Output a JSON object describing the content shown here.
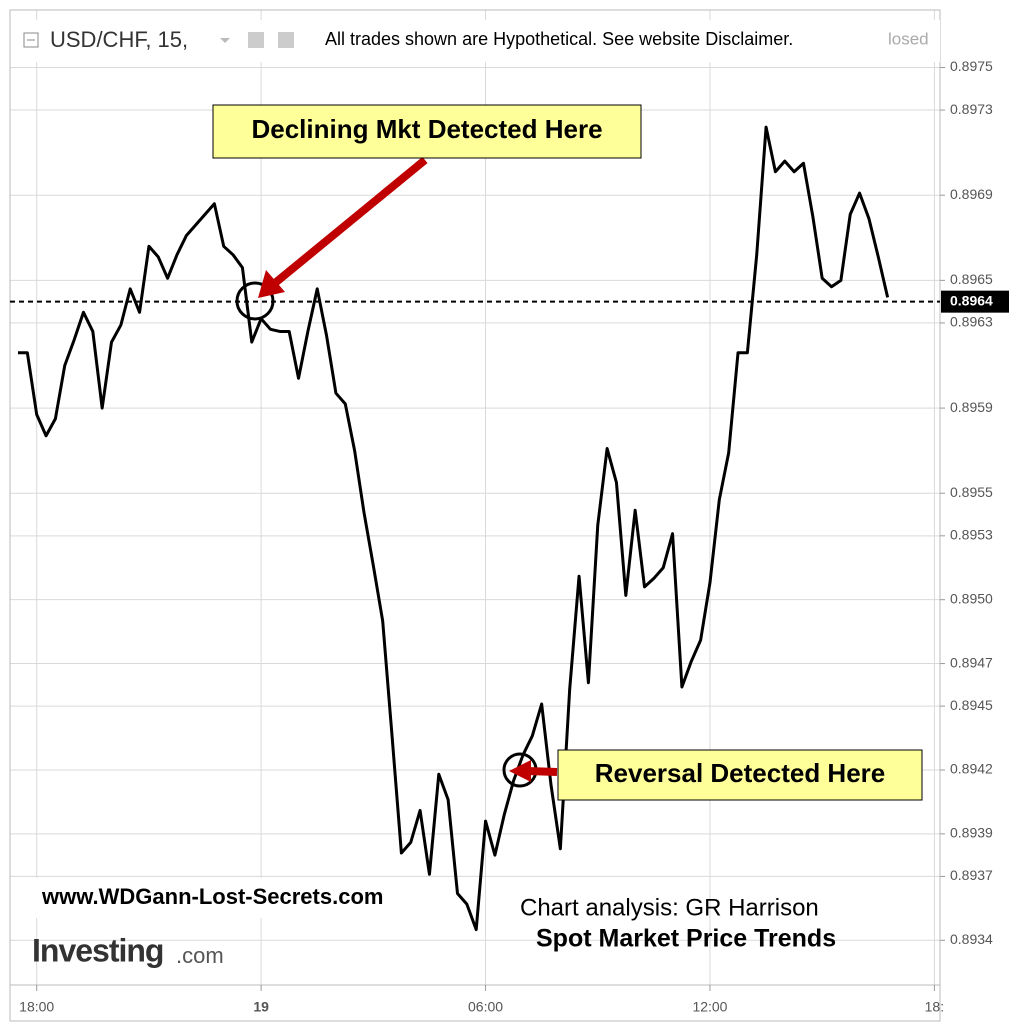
{
  "chart_data": {
    "type": "line",
    "header": {
      "symbol": "USD/CHF, 15,",
      "disclaimer": "All trades shown are Hypothetical. See website Disclaimer.",
      "status": "losed"
    },
    "annotations": [
      "Declining Mkt Detected Here",
      "Reversal Detected Here"
    ],
    "watermarks": {
      "website": "www.WDGann-Lost-Secrets.com",
      "analysis": "Chart analysis: GR Harrison",
      "subtitle": "Spot Market Price Trends",
      "brand": "Investing",
      "brand_suffix": ".com"
    },
    "x": [
      -0.5,
      -0.25,
      0,
      0.25,
      0.5,
      0.75,
      1,
      1.25,
      1.5,
      1.75,
      2,
      2.25,
      2.5,
      2.75,
      3,
      3.25,
      3.5,
      3.75,
      4,
      4.25,
      4.5,
      4.75,
      5,
      5.25,
      5.5,
      5.75,
      6,
      6.25,
      6.5,
      6.75,
      7,
      7.25,
      7.5,
      7.75,
      8,
      8.25,
      8.5,
      8.75,
      9,
      9.25,
      9.5,
      9.75,
      10,
      10.25,
      10.5,
      10.75,
      11,
      11.25,
      11.5,
      11.75,
      12,
      12.25,
      12.5,
      12.75,
      13,
      13.25,
      13.5,
      13.75,
      14,
      14.25,
      14.5,
      14.75,
      15,
      15.25,
      15.5,
      15.75,
      16,
      16.25,
      16.5,
      16.75,
      17,
      17.25,
      17.5,
      17.75,
      18,
      18.25,
      18.5,
      18.75,
      19,
      19.25,
      19.5,
      19.75,
      20,
      20.25,
      20.5,
      20.75,
      21,
      21.25,
      21.5,
      21.75,
      22,
      22.25,
      22.5,
      22.75
    ],
    "series": [
      {
        "name": "USD/CHF",
        "color": "#000000",
        "values": [
          0.89616,
          0.89616,
          0.89587,
          0.89577,
          0.89585,
          0.8961,
          0.89622,
          0.89635,
          0.89626,
          0.8959,
          0.89621,
          0.89629,
          0.89646,
          0.89635,
          0.89666,
          0.89661,
          0.89651,
          0.89662,
          0.89671,
          0.89676,
          0.89681,
          0.89686,
          0.89666,
          0.89662,
          0.89656,
          0.89621,
          0.89632,
          0.89627,
          0.89626,
          0.89626,
          0.89604,
          0.89626,
          0.89646,
          0.89624,
          0.89597,
          0.89592,
          0.8957,
          0.89541,
          0.89516,
          0.8949,
          0.89436,
          0.89381,
          0.89386,
          0.89401,
          0.89371,
          0.89418,
          0.89406,
          0.89362,
          0.89357,
          0.89345,
          0.89396,
          0.8938,
          0.89399,
          0.89415,
          0.89427,
          0.89436,
          0.89451,
          0.89413,
          0.89383,
          0.89458,
          0.89511,
          0.89461,
          0.89535,
          0.89571,
          0.89555,
          0.89502,
          0.89542,
          0.89506,
          0.8951,
          0.89515,
          0.89531,
          0.89459,
          0.89471,
          0.89481,
          0.89508,
          0.89547,
          0.89569,
          0.89616,
          0.89616,
          0.89662,
          0.89722,
          0.89701,
          0.89706,
          0.89701,
          0.89705,
          0.8968,
          0.89651,
          0.89647,
          0.8965,
          0.89681,
          0.89691,
          0.89679,
          0.89661,
          0.89642
        ]
      }
    ],
    "last_price": 0.8964,
    "xlim": [
      -0.5,
      24.15
    ],
    "xticks": [
      {
        "value": 0,
        "label": "18:00"
      },
      {
        "value": 6,
        "label": "19"
      },
      {
        "value": 12,
        "label": "06:00"
      },
      {
        "value": 18,
        "label": "12:00"
      },
      {
        "value": 24,
        "label": "18:"
      }
    ],
    "ylim": [
      0.89319,
      0.89777
    ],
    "yticks": [
      0.8975,
      0.8973,
      0.8969,
      0.8965,
      0.8963,
      0.8959,
      0.8955,
      0.8953,
      {
        "value": 0.895,
        "label": "0.8950"
      },
      0.8947,
      0.8945,
      0.8942,
      0.8939,
      0.8937,
      0.8934
    ],
    "grid": true
  }
}
